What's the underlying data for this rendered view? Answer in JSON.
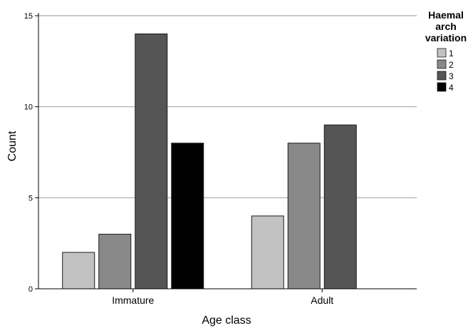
{
  "chart_data": {
    "type": "bar",
    "xlabel": "Age class",
    "ylabel": "Count",
    "categories": [
      "Immature",
      "Adult"
    ],
    "ylim": [
      0,
      15
    ],
    "yticks": [
      0,
      5,
      10,
      15
    ],
    "grid": "horizontal",
    "legend": {
      "title_lines": [
        "Haemal",
        "arch",
        "variation"
      ],
      "placement": "right"
    },
    "series": [
      {
        "name": "1",
        "color": "#c2c2c2",
        "values": [
          2,
          4
        ]
      },
      {
        "name": "2",
        "color": "#898989",
        "values": [
          3,
          8
        ]
      },
      {
        "name": "3",
        "color": "#555555",
        "values": [
          14,
          9
        ]
      },
      {
        "name": "4",
        "color": "#000000",
        "values": [
          8,
          null
        ]
      }
    ]
  }
}
